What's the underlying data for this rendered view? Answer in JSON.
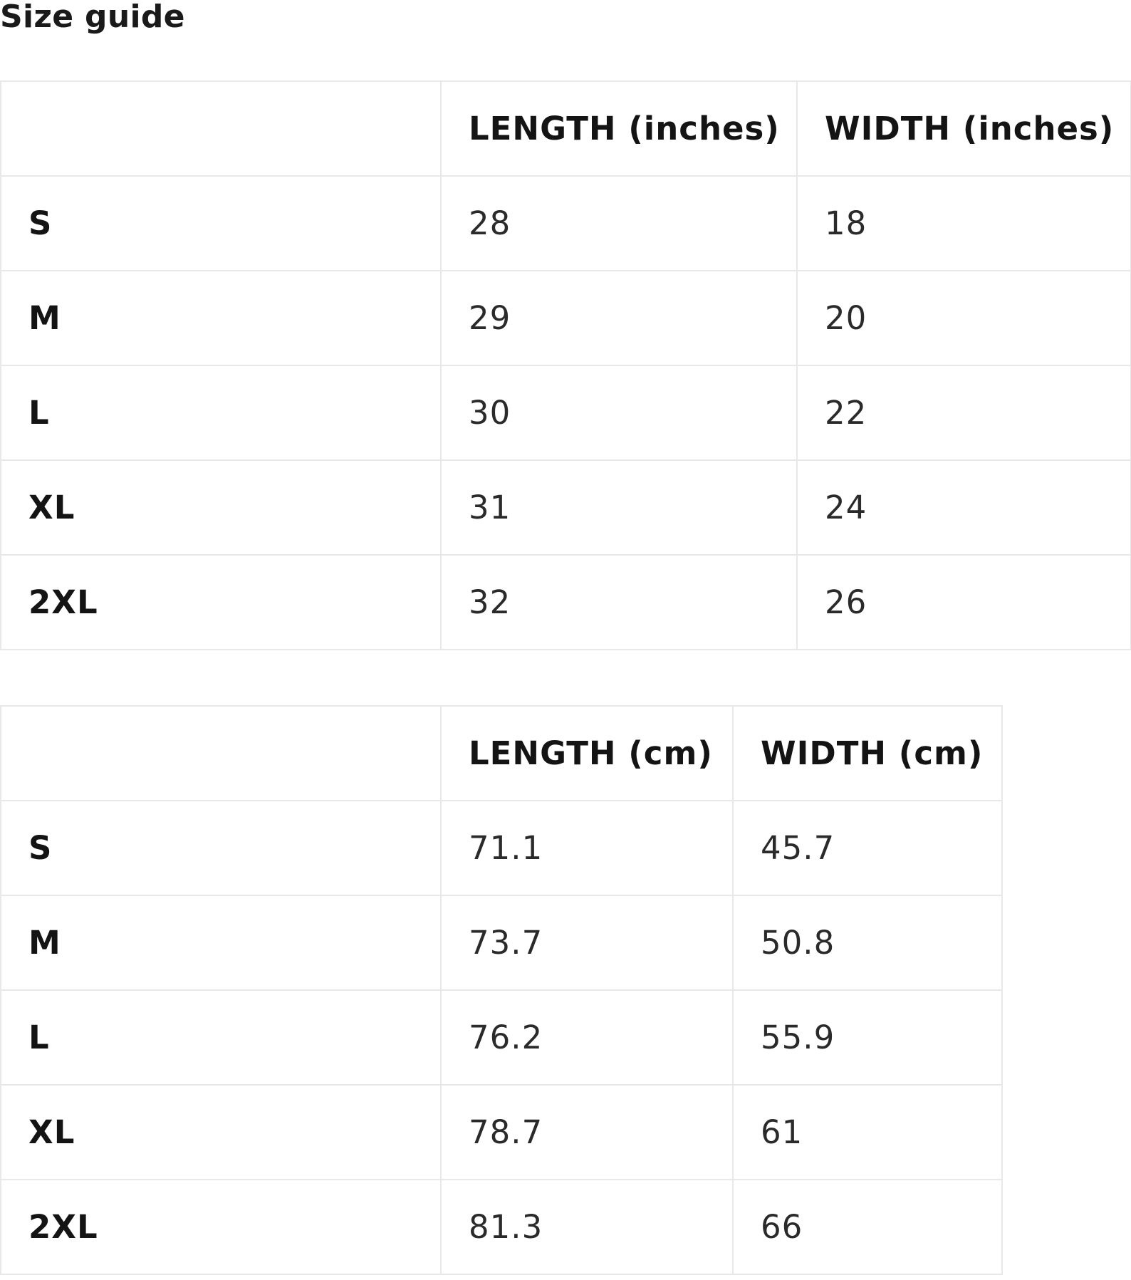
{
  "title": "Size guide",
  "tables": [
    {
      "headers": [
        "",
        "LENGTH (inches)",
        "WIDTH (inches)"
      ],
      "rows": [
        {
          "size": "S",
          "length": "28",
          "width": "18"
        },
        {
          "size": "M",
          "length": "29",
          "width": "20"
        },
        {
          "size": "L",
          "length": "30",
          "width": "22"
        },
        {
          "size": "XL",
          "length": "31",
          "width": "24"
        },
        {
          "size": "2XL",
          "length": "32",
          "width": "26"
        }
      ]
    },
    {
      "headers": [
        "",
        "LENGTH (cm)",
        "WIDTH (cm)"
      ],
      "rows": [
        {
          "size": "S",
          "length": "71.1",
          "width": "45.7"
        },
        {
          "size": "M",
          "length": "73.7",
          "width": "50.8"
        },
        {
          "size": "L",
          "length": "76.2",
          "width": "55.9"
        },
        {
          "size": "XL",
          "length": "78.7",
          "width": "61"
        },
        {
          "size": "2XL",
          "length": "81.3",
          "width": "66"
        }
      ]
    }
  ]
}
